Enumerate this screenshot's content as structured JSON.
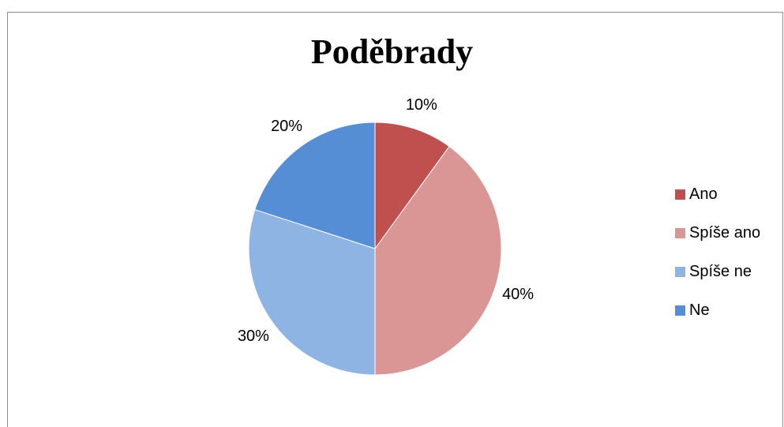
{
  "chart_data": {
    "type": "pie",
    "title": "Poděbrady",
    "categories": [
      "Ano",
      "Spíše ano",
      "Spíše ne",
      "Ne"
    ],
    "values": [
      10,
      40,
      30,
      20
    ],
    "labels": [
      "10%",
      "40%",
      "30%",
      "20%"
    ],
    "colors": [
      "#c0504d",
      "#d99694",
      "#8eb4e3",
      "#558ed5"
    ],
    "legend_position": "right"
  }
}
